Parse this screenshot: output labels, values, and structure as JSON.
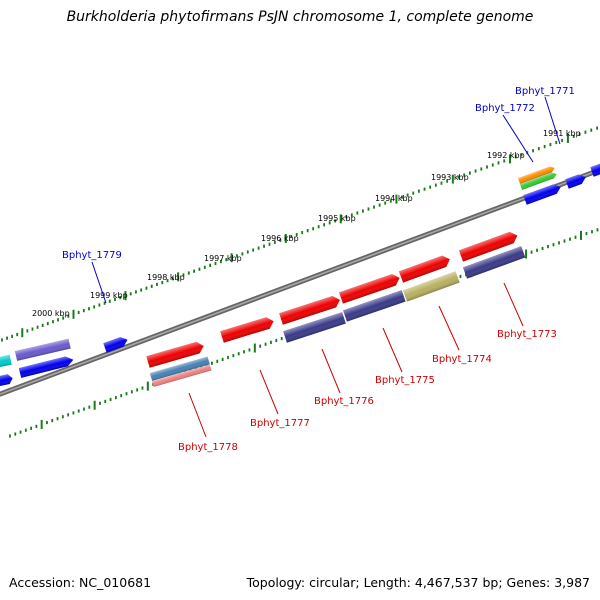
{
  "title": "Burkholderia phytofirmans PsJN chromosome 1, complete genome",
  "footer": {
    "accession": "Accession: NC_010681",
    "summary": "Topology: circular; Length: 4,467,537 bp; Genes: 3,987"
  },
  "kbp_labels": [
    "1991 kbp",
    "1992 kbp",
    "1993 kbp",
    "1994 kbp",
    "1995 kbp",
    "1996 kbp",
    "1997 kbp",
    "1998 kbp",
    "1999 kbp",
    "2000 kbp"
  ],
  "gene_labels": {
    "top": [
      "Bphyt_1771",
      "Bphyt_1772",
      "Bphyt_1779"
    ],
    "bottom": [
      "Bphyt_1773",
      "Bphyt_1774",
      "Bphyt_1775",
      "Bphyt_1776",
      "Bphyt_1777",
      "Bphyt_1778"
    ]
  },
  "colors": {
    "backbone": "#777777",
    "tick": "#1a7a1a",
    "red": "#ee0000",
    "navy": "#3a3a8a",
    "blue": "#0000ee",
    "olive": "#b8b060",
    "purple": "#6a5acd",
    "cyan": "#00cccc",
    "steel": "#4682b4",
    "pink": "#f08080",
    "orange": "#ff8c00",
    "green": "#33cc33"
  }
}
